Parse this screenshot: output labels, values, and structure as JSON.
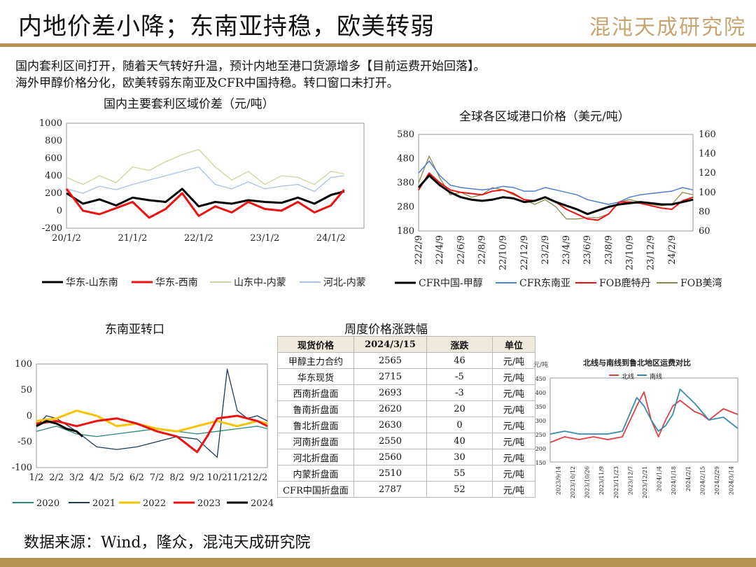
{
  "header": {
    "title": "内地价差小降；东南亚持稳，欧美转弱",
    "logo_text": "混沌天成研究院",
    "intro": [
      "国内套利区间打开，随着天气转好升温，预计内地至港口货源增多【目前运费开始回落】。",
      "海外甲醇价格分化，欧美转弱东南亚及CFR中国持稳。转口窗口未打开。"
    ]
  },
  "footer": {
    "source": "数据来源：Wind，隆众，混沌天成研究院"
  },
  "chart_data": [
    {
      "id": "c1",
      "type": "line",
      "title": "国内主要套利区域价差（元/吨）",
      "ylim": [
        -200,
        1000
      ],
      "yticks": [
        "1000",
        "800",
        "600",
        "400",
        "200",
        "0",
        "-200"
      ],
      "xticks": [
        "20/1/2",
        "21/1/2",
        "22/1/2",
        "23/1/2",
        "24/1/2"
      ],
      "xlim": [
        2020.0,
        2024.5
      ],
      "x_tick_positions": [
        2020.0,
        2021.0,
        2022.0,
        2023.0,
        2024.0
      ],
      "series": [
        {
          "name": "华东-山东南",
          "color": "#000000",
          "width": 3,
          "x": [
            2020.0,
            2020.25,
            2020.5,
            2020.75,
            2021.0,
            2021.25,
            2021.5,
            2021.75,
            2022.0,
            2022.25,
            2022.5,
            2022.75,
            2023.0,
            2023.25,
            2023.5,
            2023.75,
            2024.0,
            2024.2
          ],
          "y": [
            200,
            80,
            130,
            60,
            150,
            120,
            100,
            250,
            50,
            100,
            80,
            120,
            100,
            90,
            150,
            80,
            180,
            220
          ]
        },
        {
          "name": "华东-西南",
          "color": "#ee1111",
          "width": 3,
          "x": [
            2020.0,
            2020.25,
            2020.5,
            2020.75,
            2021.0,
            2021.25,
            2021.5,
            2021.75,
            2022.0,
            2022.25,
            2022.5,
            2022.75,
            2023.0,
            2023.25,
            2023.5,
            2023.75,
            2024.0,
            2024.2
          ],
          "y": [
            250,
            0,
            -40,
            30,
            100,
            -80,
            20,
            200,
            -60,
            50,
            -20,
            100,
            20,
            0,
            100,
            -20,
            60,
            240
          ]
        },
        {
          "name": "山东中-内蒙",
          "color": "#c8d7a0",
          "width": 1.3,
          "x": [
            2020.0,
            2020.25,
            2020.5,
            2020.75,
            2021.0,
            2021.25,
            2021.5,
            2021.75,
            2022.0,
            2022.25,
            2022.5,
            2022.75,
            2023.0,
            2023.25,
            2023.5,
            2023.75,
            2024.0,
            2024.2
          ],
          "y": [
            380,
            300,
            400,
            320,
            500,
            460,
            560,
            640,
            700,
            500,
            350,
            450,
            300,
            400,
            380,
            300,
            450,
            420
          ]
        },
        {
          "name": "河北-内蒙",
          "color": "#a8c0e8",
          "width": 1.3,
          "x": [
            2020.0,
            2020.25,
            2020.5,
            2020.75,
            2021.0,
            2021.25,
            2021.5,
            2021.75,
            2022.0,
            2022.25,
            2022.5,
            2022.75,
            2023.0,
            2023.25,
            2023.5,
            2023.75,
            2024.0,
            2024.2
          ],
          "y": [
            250,
            200,
            280,
            240,
            300,
            350,
            400,
            450,
            500,
            300,
            250,
            330,
            250,
            280,
            300,
            220,
            380,
            400
          ]
        }
      ]
    },
    {
      "id": "c2",
      "type": "line",
      "title": "全球各区域港口价格（美元/吨）",
      "ylim": [
        180,
        580
      ],
      "y2lim": [
        60,
        160
      ],
      "yticks": [
        "580",
        "480",
        "380",
        "280",
        "180"
      ],
      "y2ticks": [
        "160",
        "140",
        "120",
        "100",
        "80",
        "60"
      ],
      "xticks": [
        "22/2/9",
        "22/4/9",
        "22/6/9",
        "22/8/9",
        "22/10/9",
        "22/12/9",
        "23/2/9",
        "23/4/9",
        "23/6/9",
        "23/8/9",
        "23/10/9",
        "23/12/9",
        "24/2/9"
      ],
      "xlim": [
        0,
        26
      ],
      "x_tick_positions": [
        0,
        2,
        4,
        6,
        8,
        10,
        12,
        14,
        16,
        18,
        20,
        22,
        24
      ],
      "series": [
        {
          "name": "CFR中国-甲醇",
          "color": "#000000",
          "width": 3,
          "x": [
            0,
            1,
            2,
            3,
            4,
            5,
            6,
            7,
            8,
            9,
            10,
            11,
            12,
            13,
            14,
            15,
            16,
            17,
            18,
            19,
            20,
            21,
            22,
            23,
            24,
            25,
            26
          ],
          "y": [
            360,
            410,
            370,
            340,
            320,
            310,
            305,
            310,
            320,
            315,
            300,
            305,
            320,
            300,
            285,
            270,
            250,
            265,
            280,
            290,
            295,
            300,
            295,
            290,
            290,
            300,
            310
          ]
        },
        {
          "name": "CFR东南亚",
          "color": "#4f7fd0",
          "width": 1.5,
          "x": [
            0,
            1,
            2,
            3,
            4,
            5,
            6,
            7,
            8,
            9,
            10,
            11,
            12,
            13,
            14,
            15,
            16,
            17,
            18,
            19,
            20,
            21,
            22,
            23,
            24,
            25,
            26
          ],
          "y": [
            420,
            470,
            410,
            370,
            360,
            355,
            350,
            355,
            365,
            360,
            345,
            345,
            360,
            350,
            340,
            330,
            310,
            300,
            290,
            300,
            320,
            330,
            335,
            340,
            345,
            360,
            350
          ]
        },
        {
          "name": "FOB鹿特丹",
          "color": "#ee1111",
          "width": 2,
          "x": [
            0,
            1,
            2,
            3,
            4,
            5,
            6,
            7,
            8,
            9,
            10,
            11,
            12,
            13,
            14,
            15,
            16,
            17,
            18,
            19,
            20,
            21,
            22,
            23,
            24,
            25,
            26
          ],
          "y": [
            350,
            420,
            380,
            350,
            340,
            335,
            330,
            345,
            350,
            335,
            310,
            305,
            320,
            300,
            270,
            250,
            230,
            225,
            250,
            300,
            300,
            295,
            285,
            275,
            270,
            305,
            320
          ]
        },
        {
          "name": "FOB美湾",
          "color": "#8a8a4a",
          "width": 1.3,
          "x": [
            0,
            1,
            2,
            3,
            4,
            5,
            6,
            7,
            8,
            9,
            10,
            11,
            12,
            13,
            14,
            15,
            16,
            17,
            18,
            19,
            20,
            21,
            22,
            23,
            24,
            25,
            26
          ],
          "y": [
            380,
            490,
            400,
            330,
            340,
            320,
            330,
            360,
            350,
            330,
            310,
            290,
            310,
            280,
            230,
            230,
            235,
            235,
            250,
            300,
            310,
            300,
            290,
            285,
            290,
            340,
            330
          ]
        }
      ]
    },
    {
      "id": "c3",
      "type": "line",
      "title": "东南亚转口",
      "ylim": [
        -100,
        100
      ],
      "yticks": [
        "100",
        "50",
        "0",
        "-50",
        "-100"
      ],
      "xticks": [
        "1/2",
        "2/2",
        "3/2",
        "4/2",
        "5/2",
        "6/2",
        "7/2",
        "8/2",
        "9/2",
        "10/2",
        "11/2",
        "12/2"
      ],
      "xlim": [
        0,
        11.5
      ],
      "x_tick_positions": [
        0,
        1,
        2,
        3,
        4,
        5,
        6,
        7,
        8,
        9,
        10,
        11
      ],
      "series": [
        {
          "name": "2020",
          "color": "#2a8a7a",
          "width": 1.3,
          "x": [
            0,
            1,
            2,
            3,
            4,
            5,
            6,
            7,
            8,
            9,
            10,
            11,
            11.5
          ],
          "y": [
            -30,
            -20,
            -35,
            -40,
            -35,
            -30,
            -25,
            -30,
            -35,
            -30,
            -25,
            -20,
            -25
          ]
        },
        {
          "name": "2021",
          "color": "#1f3b5a",
          "width": 1.3,
          "x": [
            0,
            0.5,
            1,
            2,
            3,
            4,
            5,
            6,
            7,
            8,
            9,
            9.5,
            10,
            10.5,
            11,
            11.5
          ],
          "y": [
            -20,
            0,
            -5,
            -30,
            -60,
            -65,
            -60,
            -50,
            -40,
            -45,
            -80,
            90,
            10,
            -5,
            0,
            -10
          ]
        },
        {
          "name": "2022",
          "color": "#f5c400",
          "width": 3,
          "x": [
            0,
            1,
            2,
            3,
            4,
            5,
            6,
            7,
            8,
            9,
            10,
            11,
            11.5
          ],
          "y": [
            -10,
            -5,
            10,
            0,
            -20,
            -15,
            -25,
            -30,
            -20,
            -10,
            -20,
            -10,
            -15
          ]
        },
        {
          "name": "2023",
          "color": "#ee1111",
          "width": 3,
          "x": [
            0,
            1,
            2,
            3,
            4,
            5,
            6,
            7,
            8,
            8.5,
            9,
            10,
            11,
            11.5
          ],
          "y": [
            -15,
            -10,
            -20,
            -10,
            -5,
            -15,
            -30,
            -40,
            -70,
            -40,
            -5,
            0,
            -10,
            -20
          ]
        },
        {
          "name": "2024",
          "color": "#000000",
          "width": 3,
          "x": [
            0,
            0.5,
            1,
            1.5,
            2,
            2.3
          ],
          "y": [
            -20,
            -10,
            -15,
            -25,
            -30,
            -40
          ]
        }
      ]
    },
    {
      "id": "c4",
      "type": "table",
      "title": "周度价格涨跌幅",
      "columns": [
        "现货价格",
        "2024/3/15",
        "涨跌",
        "单位"
      ],
      "rows": [
        [
          "甲醇主力合约",
          "2565",
          "46",
          "元/吨"
        ],
        [
          "华东现货",
          "2715",
          "-5",
          "元/吨"
        ],
        [
          "西南折盘面",
          "2693",
          "-3",
          "元/吨"
        ],
        [
          "鲁南折盘面",
          "2620",
          "20",
          "元/吨"
        ],
        [
          "鲁北折盘面",
          "2630",
          "0",
          "元/吨"
        ],
        [
          "河南折盘面",
          "2550",
          "40",
          "元/吨"
        ],
        [
          "河北折盘面",
          "2560",
          "30",
          "元/吨"
        ],
        [
          "内蒙折盘面",
          "2510",
          "55",
          "元/吨"
        ],
        [
          "CFR中国折盘面",
          "2787",
          "52",
          "元/吨"
        ]
      ]
    },
    {
      "id": "c5",
      "type": "line",
      "title": "北线与南线到鲁北地区运费对比",
      "ylabel": "元/吨",
      "ylim": [
        150,
        450
      ],
      "yticks": [
        "450",
        "400",
        "350",
        "300",
        "250",
        "200",
        "150"
      ],
      "xticks": [
        "2023/9/14",
        "2023/10/12",
        "2023/10/26",
        "2023/11/9",
        "2023/11/23",
        "2023/12/7",
        "2023/12/21",
        "2024/1/4",
        "2024/1/18",
        "2024/2/1",
        "2024/2/15",
        "2024/2/29",
        "2024/3/14"
      ],
      "xlim": [
        0,
        13
      ],
      "x_tick_positions": [
        0.5,
        1.5,
        2.5,
        3.5,
        4.5,
        5.5,
        6.5,
        7.5,
        8.5,
        9.5,
        10.5,
        11.5,
        12.5
      ],
      "series": [
        {
          "name": "北线",
          "color": "#e04040",
          "width": 1.8,
          "x": [
            0,
            1,
            2,
            3,
            4,
            5,
            6,
            6.5,
            7,
            7.5,
            8,
            8.5,
            9,
            10,
            10.5,
            11,
            12,
            13
          ],
          "y": [
            220,
            240,
            230,
            240,
            230,
            240,
            350,
            400,
            300,
            240,
            300,
            350,
            370,
            330,
            320,
            300,
            340,
            320
          ]
        },
        {
          "name": "南线",
          "color": "#3a8ab0",
          "width": 1.8,
          "x": [
            0,
            1,
            2,
            3,
            4,
            5,
            6,
            6.5,
            7,
            7.5,
            8,
            8.5,
            9,
            10,
            10.5,
            11,
            12,
            13
          ],
          "y": [
            250,
            260,
            250,
            250,
            250,
            260,
            380,
            350,
            300,
            260,
            280,
            320,
            410,
            360,
            330,
            300,
            310,
            270
          ]
        }
      ]
    }
  ]
}
